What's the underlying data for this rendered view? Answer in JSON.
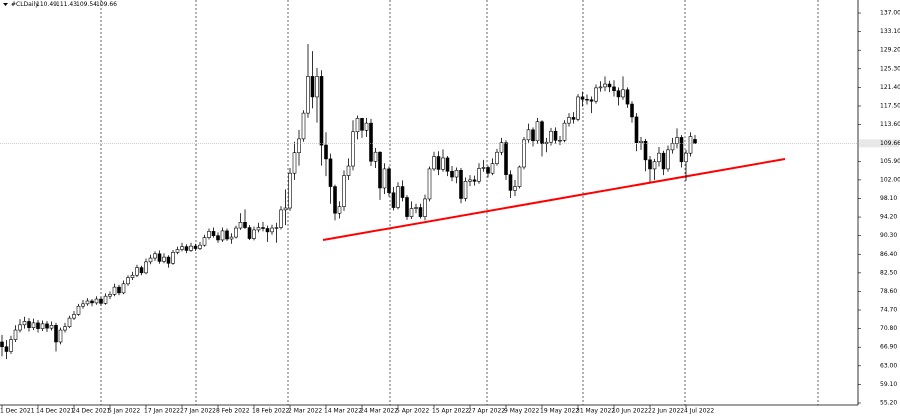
{
  "chart_data": {
    "type": "candlestick",
    "symbol": "#CLDaily",
    "categories": [
      "1 Dec 2021",
      null,
      null,
      null,
      null,
      null,
      null,
      null,
      "14 Dec 2021",
      null,
      null,
      null,
      null,
      null,
      null,
      null,
      "24 Dec 2021",
      null,
      null,
      null,
      null,
      null,
      null,
      null,
      "5 Jan 2022",
      null,
      null,
      null,
      null,
      null,
      null,
      null,
      "17 Jan 2022",
      null,
      null,
      null,
      null,
      null,
      null,
      null,
      "27 Jan 2022",
      null,
      null,
      null,
      null,
      null,
      null,
      null,
      "8 Feb 2022",
      null,
      null,
      null,
      null,
      null,
      null,
      null,
      "18 Feb 2022",
      null,
      null,
      null,
      null,
      null,
      null,
      null,
      "2 Mar 2022",
      null,
      null,
      null,
      null,
      null,
      null,
      null,
      "14 Mar 2022",
      null,
      null,
      null,
      null,
      null,
      null,
      null,
      "24 Mar 2022",
      null,
      null,
      null,
      null,
      null,
      null,
      null,
      "5 Apr 2022",
      null,
      null,
      null,
      null,
      null,
      null,
      null,
      "15 Apr 2022",
      null,
      null,
      null,
      null,
      null,
      null,
      null,
      "27 Apr 2022",
      null,
      null,
      null,
      null,
      null,
      null,
      null,
      "9 May 2022",
      null,
      null,
      null,
      null,
      null,
      null,
      null,
      "19 May 2022",
      null,
      null,
      null,
      null,
      null,
      null,
      null,
      "31 May 2022",
      null,
      null,
      null,
      null,
      null,
      null,
      null,
      "10 Jun 2022",
      null,
      null,
      null,
      null,
      null,
      null,
      null,
      "22 Jun 2022",
      null,
      null,
      null,
      null,
      null,
      null,
      null,
      "4 Jul 2022",
      null,
      null
    ],
    "open": [
      68.0,
      67.0,
      66.0,
      68.5,
      70.5,
      71.6,
      72.3,
      71.0,
      72.0,
      70.8,
      71.8,
      70.9,
      71.5,
      68.0,
      70.5,
      71.2,
      73.0,
      73.8,
      75.5,
      76.0,
      76.6,
      76.2,
      77.0,
      76.1,
      77.6,
      78.0,
      79.5,
      78.3,
      80.2,
      81.5,
      82.0,
      83.6,
      82.5,
      84.8,
      85.6,
      86.5,
      84.9,
      85.8,
      84.5,
      86.8,
      87.4,
      88.0,
      87.2,
      88.1,
      87.6,
      88.3,
      89.9,
      91.2,
      90.3,
      89.4,
      91.3,
      89.6,
      90.0,
      91.9,
      93.1,
      92.0,
      89.7,
      91.5,
      92.0,
      91.8,
      91.1,
      91.9,
      92.0,
      95.7,
      96.1,
      103.4,
      107.7,
      110.6,
      116.0,
      123.7,
      119.4,
      123.7,
      109.3,
      106.4,
      100.6,
      95.0,
      96.4,
      102.9,
      104.9,
      112.1,
      114.9,
      112.4,
      113.9,
      105.9,
      107.8,
      100.3,
      104.3,
      99.3,
      96.2,
      100.6,
      98.3,
      94.3,
      96.0,
      96.2,
      94.3,
      98.0,
      104.3,
      106.9,
      104.2,
      106.6,
      103.8,
      102.6,
      104.0,
      98.1,
      101.7,
      102.0,
      101.7,
      104.4,
      104.6,
      103.4,
      105.4,
      107.8,
      109.8,
      103.1,
      99.8,
      100.6,
      104.7,
      110.4,
      112.5,
      110.2,
      114.2,
      109.6,
      109.9,
      112.2,
      110.3,
      110.3,
      113.9,
      115.1,
      114.7,
      119.4,
      118.9,
      118.8,
      118.5,
      121.3,
      121.5,
      122.1,
      121.5,
      120.7,
      119.4,
      120.9,
      117.9,
      115.2,
      109.8,
      110.1,
      106.2,
      104.3,
      105.8,
      107.6,
      104.3,
      108.3,
      109.6,
      110.9,
      105.8,
      107.6,
      110.49
    ],
    "high": [
      69.5,
      68.4,
      69.3,
      71.5,
      72.8,
      73.3,
      73.0,
      72.9,
      72.6,
      72.5,
      72.4,
      72.3,
      72.0,
      71.0,
      72.0,
      73.5,
      74.5,
      76.0,
      76.8,
      77.2,
      77.0,
      77.6,
      77.5,
      78.2,
      78.6,
      80.2,
      80.0,
      80.9,
      82.0,
      82.7,
      84.2,
      84.0,
      85.5,
      86.3,
      87.0,
      87.2,
      86.6,
      86.2,
      87.3,
      88.0,
      88.8,
      88.5,
      88.8,
      88.6,
      89.0,
      90.5,
      91.8,
      92.0,
      91.0,
      92.0,
      91.8,
      90.8,
      92.4,
      95.0,
      95.8,
      92.5,
      92.2,
      93.0,
      93.2,
      92.4,
      92.6,
      93.0,
      96.5,
      100.0,
      104.5,
      110.0,
      112.5,
      116.6,
      130.5,
      129.0,
      125.5,
      125.0,
      112.0,
      107.5,
      101.0,
      97.5,
      104.0,
      106.5,
      114.5,
      115.5,
      115.0,
      115.0,
      114.8,
      108.7,
      108.0,
      105.5,
      104.8,
      100.5,
      101.5,
      101.9,
      98.8,
      97.5,
      97.0,
      97.0,
      98.9,
      104.8,
      107.9,
      108.0,
      108.4,
      107.0,
      104.9,
      104.6,
      104.5,
      102.5,
      103.0,
      102.9,
      105.5,
      106.2,
      105.0,
      106.5,
      108.5,
      110.8,
      110.3,
      104.0,
      102.0,
      105.0,
      111.0,
      113.8,
      113.0,
      115.0,
      114.5,
      110.8,
      112.9,
      113.0,
      111.2,
      114.5,
      116.0,
      116.2,
      120.0,
      120.5,
      119.9,
      119.5,
      122.0,
      122.7,
      123.7,
      122.8,
      122.9,
      121.4,
      123.7,
      121.4,
      118.5,
      116.0,
      111.0,
      110.6,
      107.0,
      106.4,
      108.9,
      108.1,
      109.2,
      110.8,
      112.8,
      111.4,
      108.3,
      112.0,
      111.43
    ],
    "low": [
      65.0,
      64.4,
      65.5,
      68.0,
      70.0,
      70.8,
      70.2,
      70.5,
      70.0,
      70.3,
      70.1,
      70.4,
      66.0,
      67.5,
      70.0,
      70.9,
      72.6,
      73.5,
      75.0,
      75.6,
      75.5,
      75.8,
      75.6,
      75.8,
      77.0,
      77.6,
      77.8,
      78.0,
      79.8,
      81.0,
      81.6,
      82.0,
      82.2,
      84.3,
      85.0,
      84.4,
      84.5,
      83.6,
      84.2,
      86.4,
      87.0,
      86.6,
      86.9,
      87.1,
      87.3,
      88.0,
      89.5,
      89.9,
      88.8,
      89.0,
      89.2,
      88.6,
      89.7,
      91.5,
      91.7,
      89.4,
      89.3,
      91.0,
      91.2,
      89.0,
      90.5,
      88.8,
      91.6,
      92.5,
      95.5,
      102.0,
      105.0,
      110.0,
      115.0,
      117.0,
      114.0,
      105.0,
      102.8,
      97.0,
      93.5,
      93.9,
      95.5,
      102.0,
      104.0,
      110.5,
      110.8,
      111.0,
      104.9,
      104.5,
      97.8,
      99.0,
      98.5,
      95.6,
      95.8,
      97.5,
      93.6,
      93.8,
      95.0,
      93.9,
      93.5,
      97.5,
      103.9,
      103.0,
      103.7,
      102.8,
      101.7,
      101.3,
      97.1,
      97.5,
      100.7,
      100.8,
      101.2,
      103.7,
      102.5,
      103.0,
      105.0,
      107.2,
      102.0,
      98.2,
      98.6,
      100.2,
      104.2,
      109.8,
      109.0,
      109.6,
      106.9,
      107.8,
      109.2,
      109.6,
      109.3,
      109.9,
      113.2,
      113.8,
      114.3,
      117.4,
      117.8,
      116.0,
      118.0,
      120.5,
      120.6,
      120.4,
      119.5,
      117.6,
      118.8,
      117.1,
      114.0,
      108.0,
      108.3,
      103.8,
      101.5,
      102.0,
      104.8,
      103.0,
      103.7,
      107.5,
      108.6,
      104.6,
      101.8,
      106.9,
      109.54
    ],
    "close": [
      67.0,
      66.0,
      68.5,
      70.5,
      71.6,
      72.3,
      71.0,
      72.0,
      70.8,
      71.8,
      70.9,
      71.5,
      68.0,
      70.5,
      71.2,
      73.0,
      73.8,
      75.5,
      76.0,
      76.6,
      76.2,
      77.0,
      76.1,
      77.6,
      78.0,
      79.5,
      78.3,
      80.2,
      81.5,
      82.0,
      83.6,
      82.5,
      84.8,
      85.6,
      86.5,
      84.9,
      85.8,
      84.5,
      86.8,
      87.4,
      88.0,
      87.2,
      88.1,
      87.6,
      88.3,
      89.9,
      91.2,
      90.3,
      89.4,
      91.3,
      89.6,
      90.0,
      91.9,
      93.1,
      92.0,
      89.7,
      91.5,
      92.0,
      91.8,
      91.1,
      91.9,
      92.0,
      95.7,
      96.1,
      103.4,
      107.7,
      110.6,
      116.0,
      123.7,
      119.4,
      123.7,
      109.3,
      106.4,
      100.6,
      95.0,
      96.4,
      102.9,
      104.9,
      112.1,
      114.9,
      112.4,
      113.9,
      105.9,
      107.8,
      100.3,
      104.3,
      99.3,
      96.2,
      100.6,
      98.3,
      94.3,
      96.0,
      96.2,
      94.3,
      98.0,
      104.3,
      106.9,
      104.2,
      106.6,
      103.8,
      102.6,
      104.0,
      98.1,
      101.7,
      102.0,
      101.7,
      104.4,
      104.6,
      103.4,
      105.4,
      107.8,
      109.8,
      103.1,
      99.8,
      100.6,
      104.7,
      110.4,
      112.5,
      110.2,
      114.2,
      109.6,
      109.9,
      112.2,
      110.3,
      110.3,
      113.9,
      115.1,
      114.7,
      119.4,
      118.9,
      118.8,
      118.5,
      121.3,
      121.5,
      122.1,
      121.5,
      120.7,
      119.4,
      120.9,
      117.9,
      115.2,
      109.8,
      110.1,
      106.2,
      104.3,
      105.8,
      107.6,
      104.3,
      108.3,
      109.6,
      110.9,
      105.8,
      107.6,
      111.1,
      109.66
    ],
    "ylim": [
      54.78,
      139.73
    ],
    "yticks": [
      {
        "value": 137,
        "label": "137.00"
      },
      {
        "value": 133.1,
        "label": "133.10"
      },
      {
        "value": 129.2,
        "label": "129.20"
      },
      {
        "value": 125.3,
        "label": "125.30"
      },
      {
        "value": 121.4,
        "label": "121.40"
      },
      {
        "value": 117.5,
        "label": "117.50"
      },
      {
        "value": 113.6,
        "label": "113.60"
      },
      {
        "value": 105.9,
        "label": "105.90"
      },
      {
        "value": 102,
        "label": "102.00"
      },
      {
        "value": 98.1,
        "label": "98.10"
      },
      {
        "value": 94.2,
        "label": "94.20"
      },
      {
        "value": 90.3,
        "label": "90.30"
      },
      {
        "value": 86.4,
        "label": "86.40"
      },
      {
        "value": 82.5,
        "label": "82.50"
      },
      {
        "value": 78.6,
        "label": "78.60"
      },
      {
        "value": 74.7,
        "label": "74.70"
      },
      {
        "value": 70.8,
        "label": "70.80"
      },
      {
        "value": 66.9,
        "label": "66.90"
      },
      {
        "value": 63,
        "label": "63.00"
      },
      {
        "value": 59.1,
        "label": "59.10"
      },
      {
        "value": 55.2,
        "label": "55.20"
      }
    ],
    "up_color": "#ffffff",
    "down_color": "#000000"
  }
}
